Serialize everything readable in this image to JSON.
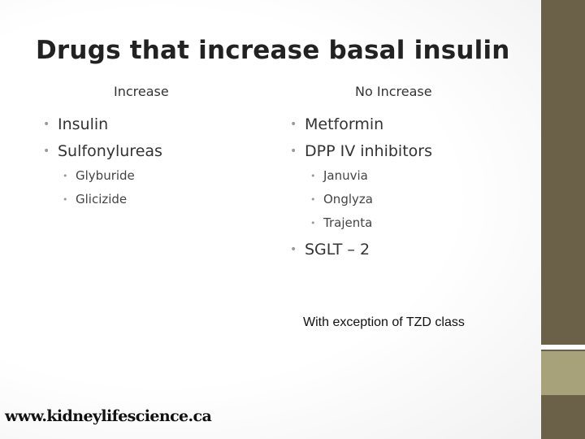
{
  "slide": {
    "title": "Drugs that increase basal insulin",
    "left_column": {
      "header": "Increase",
      "items": [
        "Insulin",
        "Sulfonylureas"
      ],
      "subitems": [
        "Glyburide",
        "Glicizide"
      ]
    },
    "right_column": {
      "header": "No Increase",
      "items": [
        "Metformin",
        "DPP IV inhibitors"
      ],
      "subitems": [
        "Januvia",
        "Onglyza",
        "Trajenta"
      ],
      "items_after": [
        "SGLT – 2"
      ]
    },
    "note": "With exception of TZD class",
    "watermark": "www.kidneylifescience.ca",
    "bullet_glyph": "•",
    "colors": {
      "sidebar": "#6b6149",
      "sidebar_accent": "#a8a27b",
      "bullet": "#999999"
    }
  }
}
